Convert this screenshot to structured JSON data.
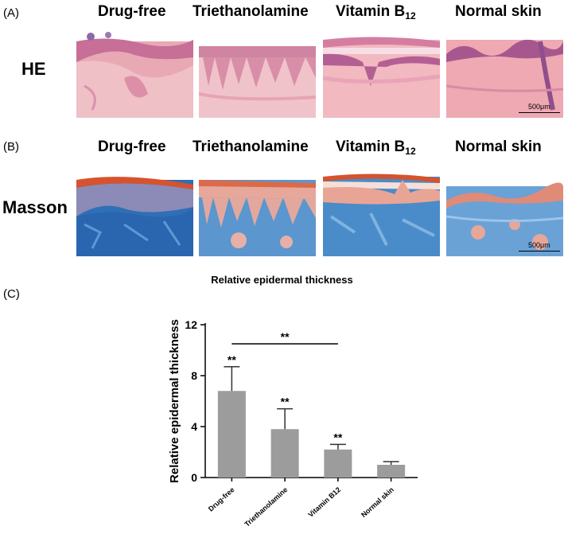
{
  "panels": {
    "a": {
      "tag": "(A)",
      "stain": "HE",
      "columns": [
        {
          "main": "Drug-free",
          "sub": ""
        },
        {
          "main": "Triethanolamine",
          "sub": ""
        },
        {
          "main": "Vitamin B",
          "sub": "12"
        },
        {
          "main": "Normal skin",
          "sub": ""
        }
      ],
      "scale_bar": "500μm"
    },
    "b": {
      "tag": "(B)",
      "stain": "Masson",
      "columns": [
        {
          "main": "Drug-free",
          "sub": ""
        },
        {
          "main": "Triethanolamine",
          "sub": ""
        },
        {
          "main": "Vitamin B",
          "sub": "12"
        },
        {
          "main": "Normal skin",
          "sub": ""
        }
      ],
      "scale_bar": "500μm"
    },
    "c": {
      "tag": "(C)"
    }
  },
  "colors": {
    "he_pink": "#e9a7b4",
    "he_purple": "#9c5a9c",
    "masson_blue": "#3f86c6",
    "masson_red": "#d8573a",
    "bar_fill": "#9c9c9c"
  },
  "chart_data": {
    "type": "bar",
    "title": "Relative epidermal thickness",
    "xlabel": "",
    "ylabel": "Relative epidermal thickness",
    "categories": [
      "Drug-free",
      "Triethanolamine",
      "Vitamin B12",
      "Normal skin"
    ],
    "values": [
      6.8,
      3.8,
      2.2,
      1.0
    ],
    "errors": [
      1.9,
      1.6,
      0.4,
      0.25
    ],
    "significance": [
      "**",
      "**",
      "**",
      ""
    ],
    "comparison": {
      "from": "Drug-free",
      "to": "Vitamin B12",
      "label": "**"
    },
    "ylim": [
      0,
      12
    ],
    "yticks": [
      0,
      4,
      8,
      12
    ],
    "grid": false
  }
}
